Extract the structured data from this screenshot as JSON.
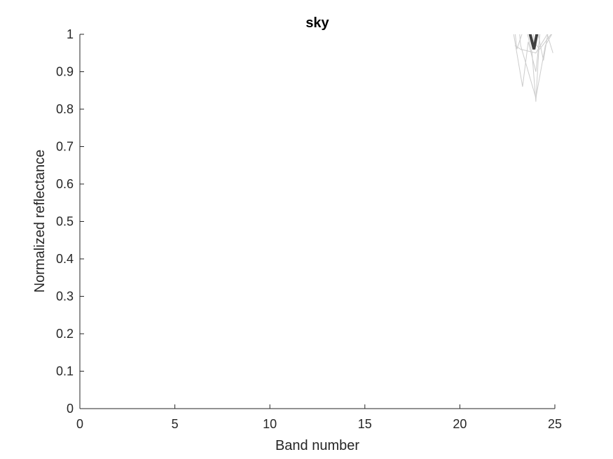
{
  "chart_data": {
    "type": "line",
    "title": "sky",
    "xlabel": "Band number",
    "ylabel": "Normalized reflectance",
    "xlim": [
      0,
      25
    ],
    "ylim": [
      0,
      1
    ],
    "xticks": [
      0,
      5,
      10,
      15,
      20,
      25
    ],
    "xtick_labels": [
      "0",
      "5",
      "10",
      "15",
      "20",
      "25"
    ],
    "yticks": [
      0,
      0.1,
      0.2,
      0.3,
      0.4,
      0.5,
      0.6,
      0.7,
      0.8,
      0.9,
      1
    ],
    "ytick_labels": [
      "0",
      "0.1",
      "0.2",
      "0.3",
      "0.4",
      "0.5",
      "0.6",
      "0.7",
      "0.8",
      "0.9",
      "1"
    ],
    "grid": false,
    "colors": {
      "individual": "#cccccc",
      "mean": "#404040",
      "axis": "#262626"
    },
    "series": [
      {
        "role": "individual",
        "x": [
          22.5,
          23.3,
          23.6,
          24.0,
          24.3,
          25.0
        ],
        "y": [
          1.1,
          0.86,
          0.98,
          0.9,
          1.04,
          1.2
        ]
      },
      {
        "role": "individual",
        "x": [
          22.6,
          23.0,
          23.8,
          24.4,
          25.2
        ],
        "y": [
          1.15,
          0.96,
          1.08,
          0.93,
          1.18
        ]
      },
      {
        "role": "individual",
        "x": [
          23.0,
          23.8,
          24.0,
          24.2,
          24.6
        ],
        "y": [
          1.12,
          0.95,
          0.82,
          1.0,
          1.2
        ]
      },
      {
        "role": "individual",
        "x": [
          22.8,
          23.2,
          24.0,
          24.5,
          25.4
        ],
        "y": [
          1.2,
          0.97,
          0.83,
          0.97,
          1.05
        ]
      },
      {
        "role": "individual",
        "x": [
          22.9,
          23.2,
          24.0,
          24.6,
          24.9
        ],
        "y": [
          0.97,
          0.96,
          0.95,
          1.0,
          0.95
        ]
      },
      {
        "role": "individual",
        "x": [
          23.4,
          23.9,
          24.2,
          24.8,
          25.3
        ],
        "y": [
          1.25,
          0.98,
          0.96,
          1.0,
          1.1
        ]
      },
      {
        "role": "mean",
        "x": [
          23.6,
          23.9,
          24.2
        ],
        "y": [
          1.02,
          0.96,
          1.04
        ]
      }
    ]
  }
}
